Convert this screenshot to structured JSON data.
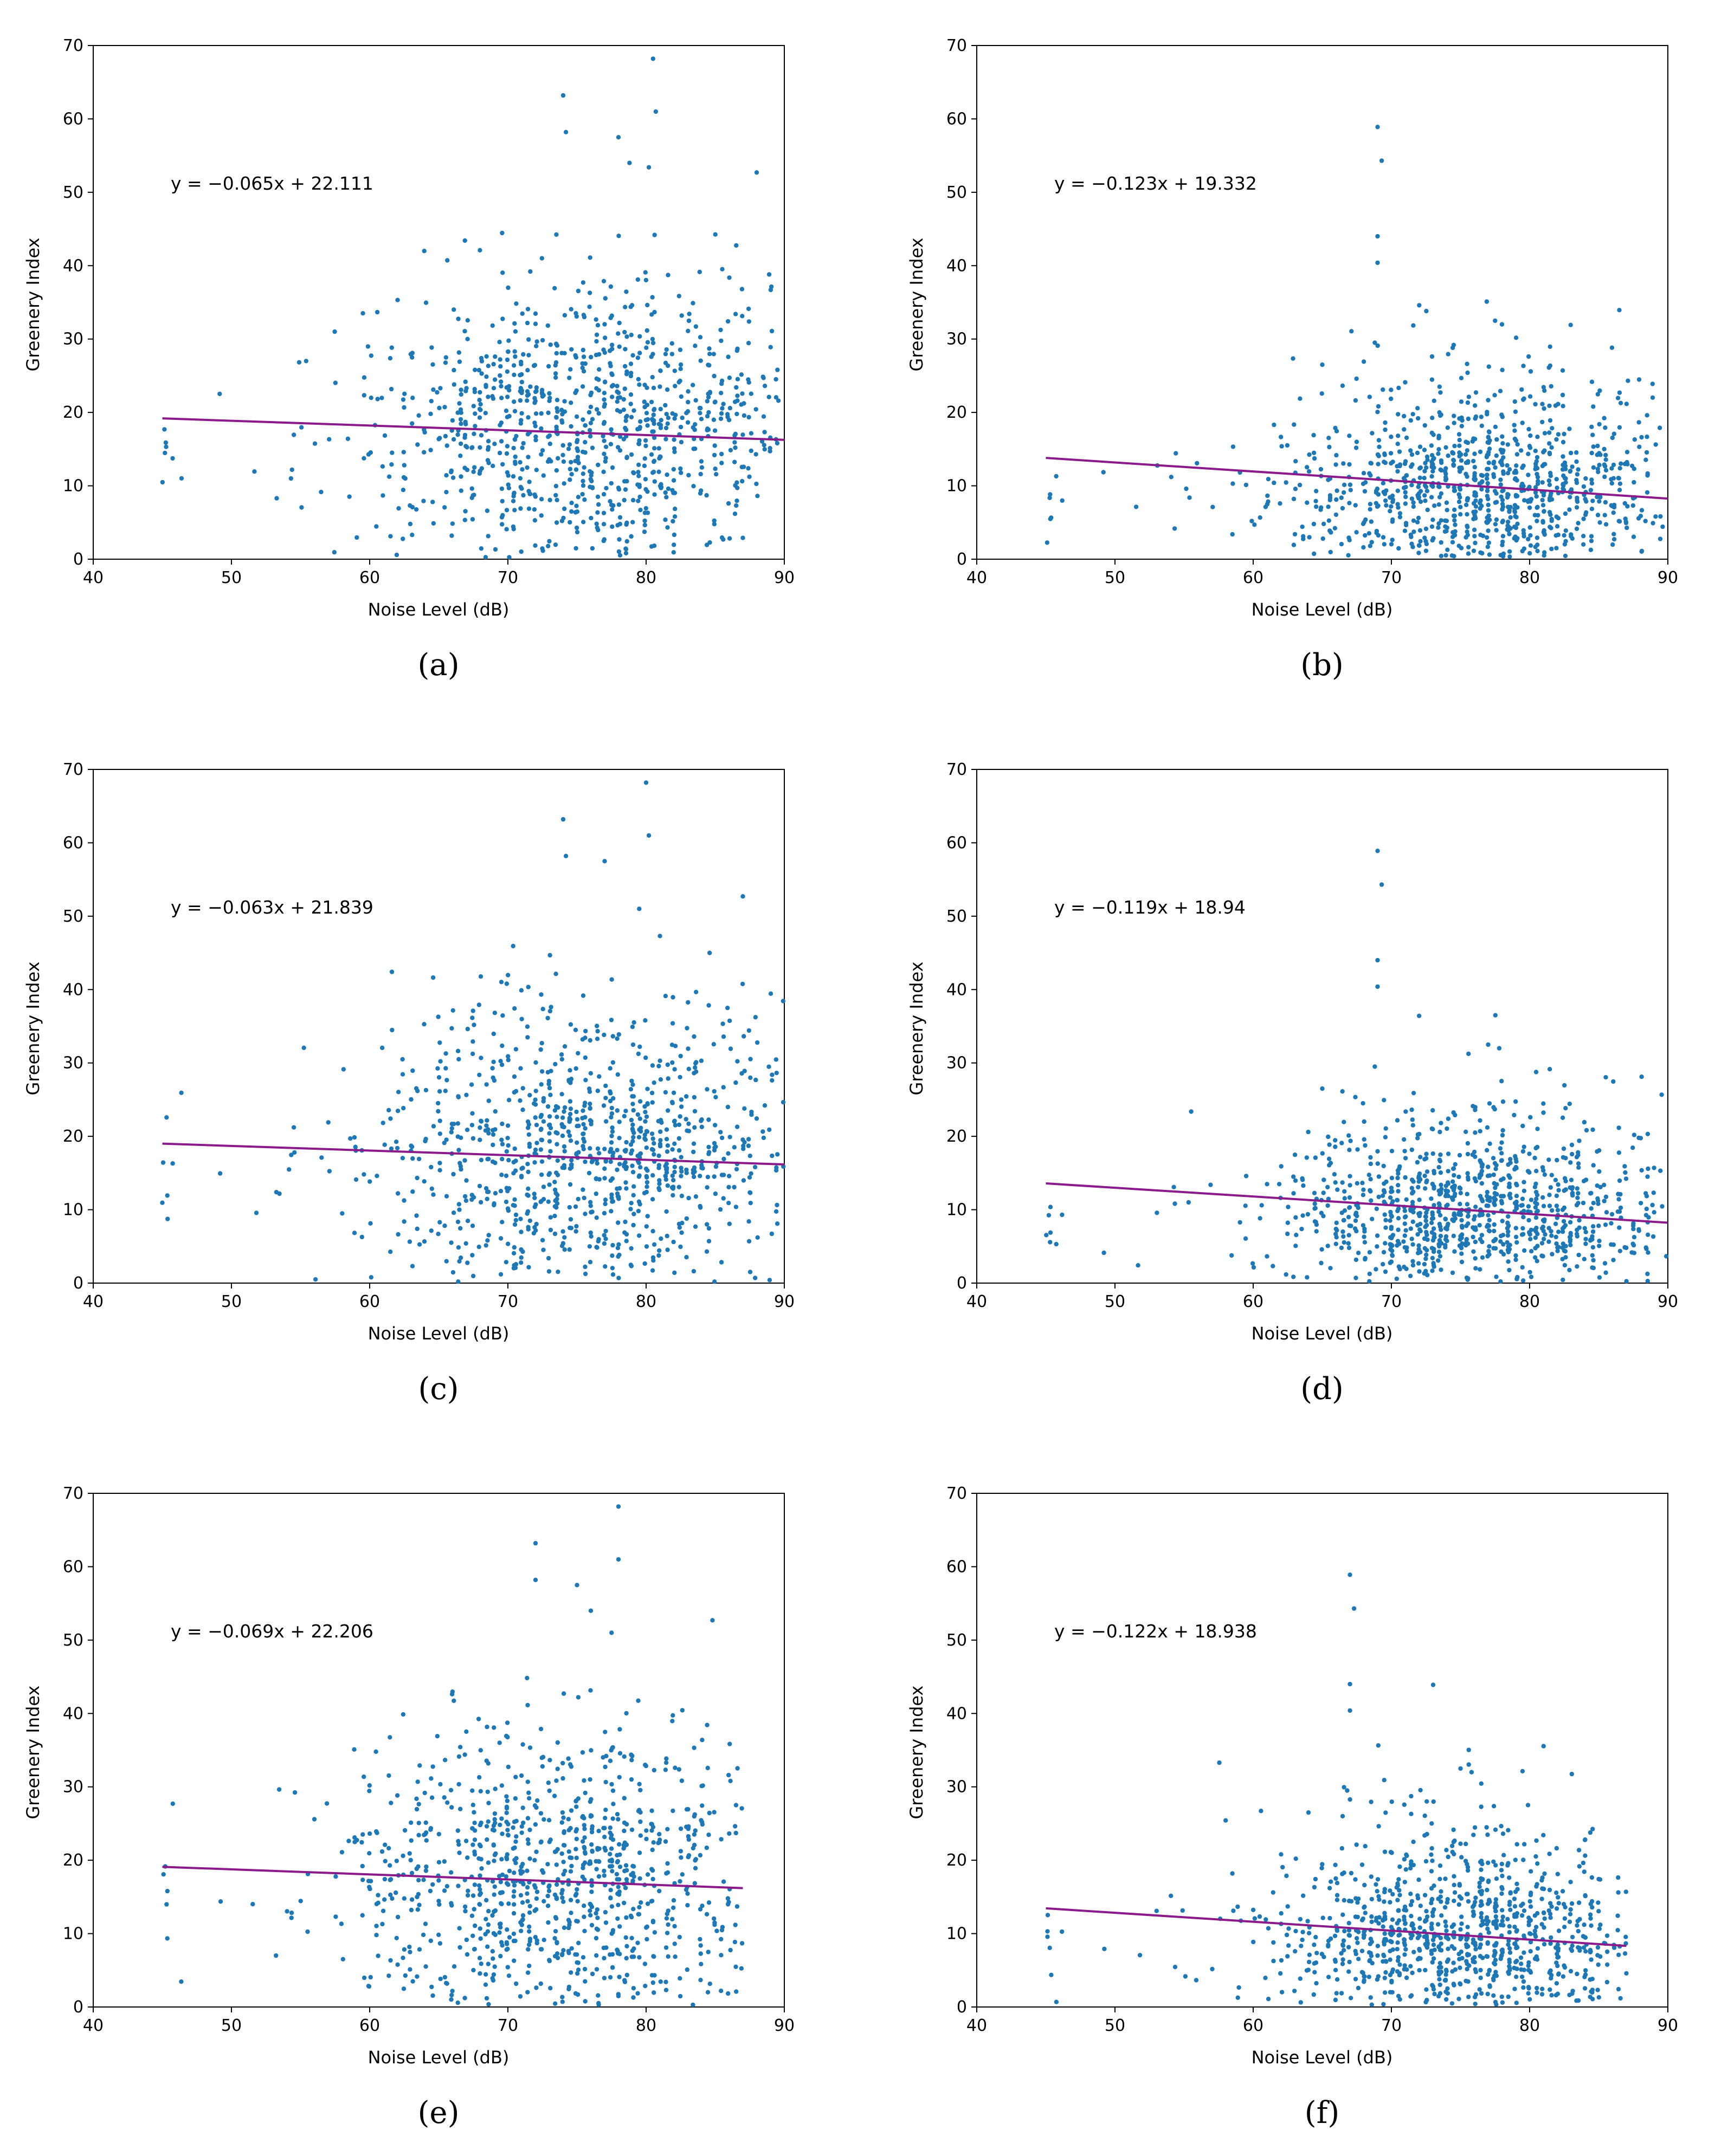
{
  "chart_data": [
    {
      "panel": "a",
      "type": "scatter",
      "xlabel": "Noise Level (dB)",
      "ylabel": "Greenery Index",
      "xlim": [
        40,
        90
      ],
      "ylim": [
        0,
        70
      ],
      "xticks": [
        40,
        50,
        60,
        70,
        80,
        90
      ],
      "yticks": [
        0,
        10,
        20,
        30,
        40,
        50,
        60,
        70
      ],
      "equation": "y = −0.065x + 22.111",
      "fit": {
        "slope": -0.065,
        "intercept": 22.111,
        "x_range": [
          45,
          90
        ]
      },
      "point_color": "#1f77b4",
      "line_color": "#8b1a8b",
      "x_center": 76,
      "x_spread": 8,
      "x_max": 90,
      "y_center": 17,
      "y_spread": 10,
      "outliers": [
        [
          80.5,
          68.2
        ],
        [
          74,
          63.2
        ],
        [
          80.7,
          61
        ],
        [
          74.2,
          58.2
        ],
        [
          78,
          57.5
        ],
        [
          88,
          52.7
        ],
        [
          78.8,
          54
        ],
        [
          80.2,
          53.4
        ]
      ]
    },
    {
      "panel": "b",
      "type": "scatter",
      "xlabel": "Noise Level (dB)",
      "ylabel": "Greenery Index",
      "xlim": [
        40,
        90
      ],
      "ylim": [
        0,
        70
      ],
      "xticks": [
        40,
        50,
        60,
        70,
        80,
        90
      ],
      "yticks": [
        0,
        10,
        20,
        30,
        40,
        50,
        60,
        70
      ],
      "equation": "y = −0.123x + 19.332",
      "fit": {
        "slope": -0.123,
        "intercept": 19.332,
        "x_range": [
          45,
          90
        ]
      },
      "point_color": "#1f77b4",
      "line_color": "#8b1a8b",
      "x_center": 77,
      "x_spread": 7,
      "x_max": 90,
      "y_center": 9,
      "y_spread": 6,
      "outliers": [
        [
          69,
          58.9
        ],
        [
          69.3,
          54.3
        ],
        [
          69,
          44
        ],
        [
          69,
          40.4
        ],
        [
          77.5,
          32.5
        ],
        [
          78,
          32
        ],
        [
          68.8,
          29.5
        ],
        [
          65,
          26.5
        ]
      ]
    },
    {
      "panel": "c",
      "type": "scatter",
      "xlabel": "Noise Level (dB)",
      "ylabel": "Greenery Index",
      "xlim": [
        40,
        90
      ],
      "ylim": [
        0,
        70
      ],
      "xticks": [
        40,
        50,
        60,
        70,
        80,
        90
      ],
      "yticks": [
        0,
        10,
        20,
        30,
        40,
        50,
        60,
        70
      ],
      "equation": "y = −0.063x + 21.839",
      "fit": {
        "slope": -0.063,
        "intercept": 21.839,
        "x_range": [
          45,
          90
        ]
      },
      "point_color": "#1f77b4",
      "line_color": "#8b1a8b",
      "x_center": 76,
      "x_spread": 8,
      "x_max": 90,
      "y_center": 16.5,
      "y_spread": 10,
      "outliers": [
        [
          80,
          68.2
        ],
        [
          74,
          63.2
        ],
        [
          80.2,
          61
        ],
        [
          74.2,
          58.2
        ],
        [
          77,
          57.5
        ],
        [
          87,
          52.7
        ],
        [
          79.5,
          51
        ],
        [
          81,
          47.3
        ]
      ]
    },
    {
      "panel": "d",
      "type": "scatter",
      "xlabel": "Noise Level (dB)",
      "ylabel": "Greenery Index",
      "xlim": [
        40,
        90
      ],
      "ylim": [
        0,
        70
      ],
      "xticks": [
        40,
        50,
        60,
        70,
        80,
        90
      ],
      "yticks": [
        0,
        10,
        20,
        30,
        40,
        50,
        60,
        70
      ],
      "equation": "y = −0.119x + 18.94",
      "fit": {
        "slope": -0.119,
        "intercept": 18.94,
        "x_range": [
          45,
          90
        ]
      },
      "point_color": "#1f77b4",
      "line_color": "#8b1a8b",
      "x_center": 76,
      "x_spread": 7,
      "x_max": 90,
      "y_center": 9,
      "y_spread": 6,
      "outliers": [
        [
          69,
          58.9
        ],
        [
          69.3,
          54.3
        ],
        [
          69,
          44
        ],
        [
          69,
          40.4
        ],
        [
          77,
          32.5
        ],
        [
          77.8,
          32
        ],
        [
          68.8,
          29.5
        ],
        [
          65,
          26.5
        ]
      ]
    },
    {
      "panel": "e",
      "type": "scatter",
      "xlabel": "Noise Level (dB)",
      "ylabel": "Greenery Index",
      "xlim": [
        40,
        90
      ],
      "ylim": [
        0,
        70
      ],
      "xticks": [
        40,
        50,
        60,
        70,
        80,
        90
      ],
      "yticks": [
        0,
        10,
        20,
        30,
        40,
        50,
        60,
        70
      ],
      "equation": "y = −0.069x + 22.206",
      "fit": {
        "slope": -0.069,
        "intercept": 22.206,
        "x_range": [
          45,
          87
        ]
      },
      "point_color": "#1f77b4",
      "line_color": "#8b1a8b",
      "x_center": 74,
      "x_spread": 8,
      "x_max": 87,
      "y_center": 16.5,
      "y_spread": 10,
      "outliers": [
        [
          78,
          68.2
        ],
        [
          72,
          63.2
        ],
        [
          78,
          61
        ],
        [
          72,
          58.2
        ],
        [
          75,
          57.5
        ],
        [
          84.8,
          52.7
        ],
        [
          76,
          54
        ],
        [
          77.5,
          51
        ]
      ]
    },
    {
      "panel": "f",
      "type": "scatter",
      "xlabel": "Noise Level (dB)",
      "ylabel": "Greenery Index",
      "xlim": [
        40,
        90
      ],
      "ylim": [
        0,
        70
      ],
      "xticks": [
        40,
        50,
        60,
        70,
        80,
        90
      ],
      "yticks": [
        0,
        10,
        20,
        30,
        40,
        50,
        60,
        70
      ],
      "equation": "y = −0.122x + 18.938",
      "fit": {
        "slope": -0.122,
        "intercept": 18.938,
        "x_range": [
          45,
          87
        ]
      },
      "point_color": "#1f77b4",
      "line_color": "#8b1a8b",
      "x_center": 75,
      "x_spread": 7,
      "x_max": 87,
      "y_center": 9,
      "y_spread": 6,
      "outliers": [
        [
          67,
          58.9
        ],
        [
          67.3,
          54.3
        ],
        [
          67,
          44
        ],
        [
          67,
          40.4
        ],
        [
          75,
          32.5
        ],
        [
          75.8,
          32
        ],
        [
          66.8,
          29.5
        ],
        [
          64,
          26.5
        ]
      ]
    }
  ],
  "captions": [
    "(a)",
    "(b)",
    "(c)",
    "(d)",
    "(e)",
    "(f)"
  ]
}
